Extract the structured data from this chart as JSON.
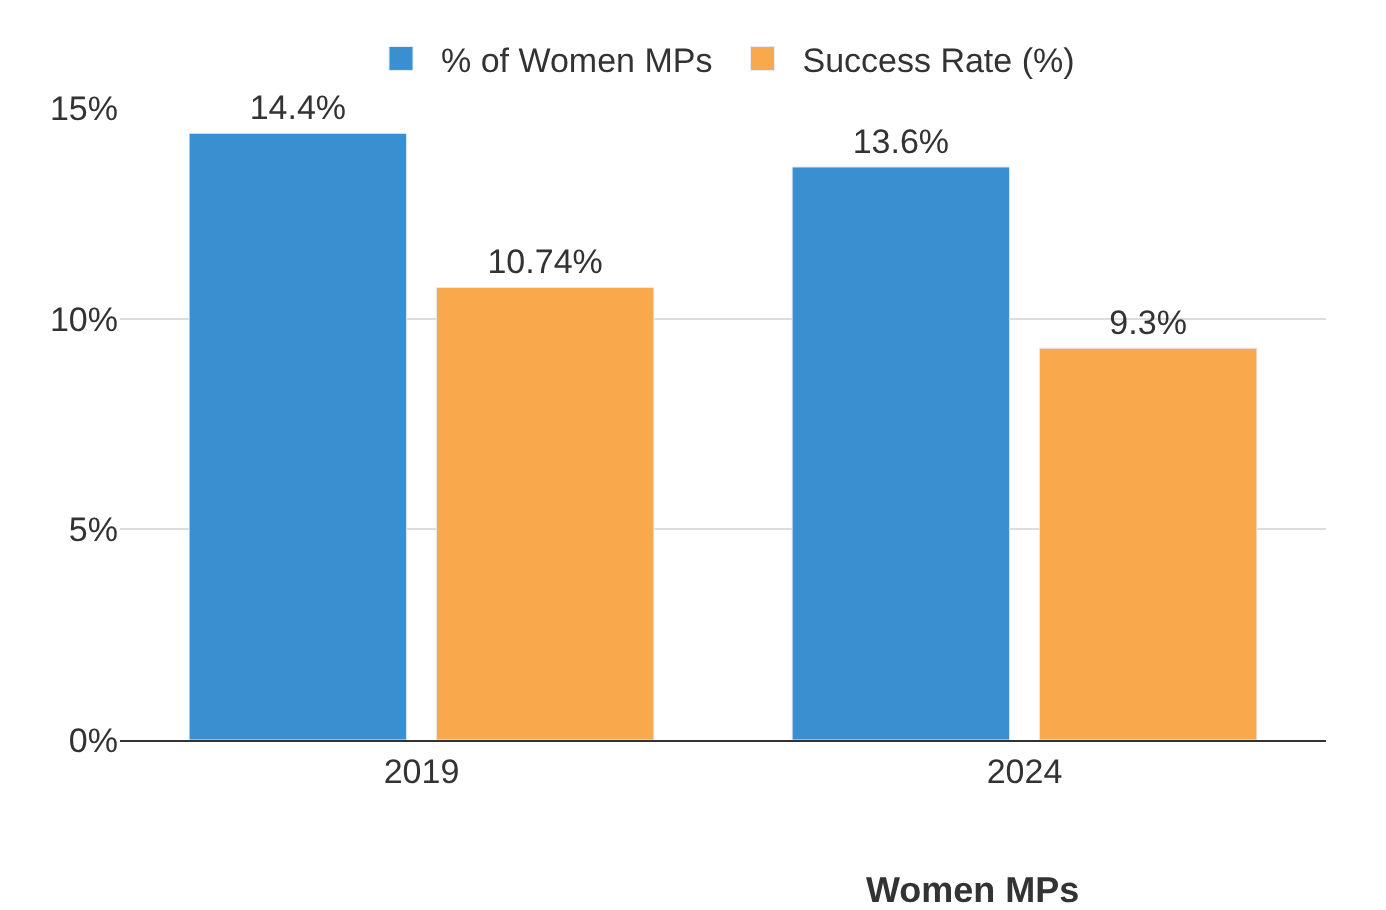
{
  "chart_data": {
    "type": "bar",
    "xlabel": "Women MPs",
    "categories": [
      "2019",
      "2024"
    ],
    "series": [
      {
        "name": "% of Women MPs",
        "color": "#3a8fd0",
        "values": [
          14.4,
          13.6
        ],
        "value_labels": [
          "14.4%",
          "13.6%"
        ]
      },
      {
        "name": "Success Rate (%)",
        "color": "#f9a94b",
        "values": [
          10.74,
          9.3
        ],
        "value_labels": [
          "10.74%",
          "9.3%"
        ]
      }
    ],
    "ylim": [
      0,
      15
    ],
    "yticks": [
      {
        "value": 0,
        "label": "0%"
      },
      {
        "value": 5,
        "label": "5%"
      },
      {
        "value": 10,
        "label": "10%"
      },
      {
        "value": 15,
        "label": "15%"
      }
    ],
    "grid": "y",
    "legend": "top"
  }
}
